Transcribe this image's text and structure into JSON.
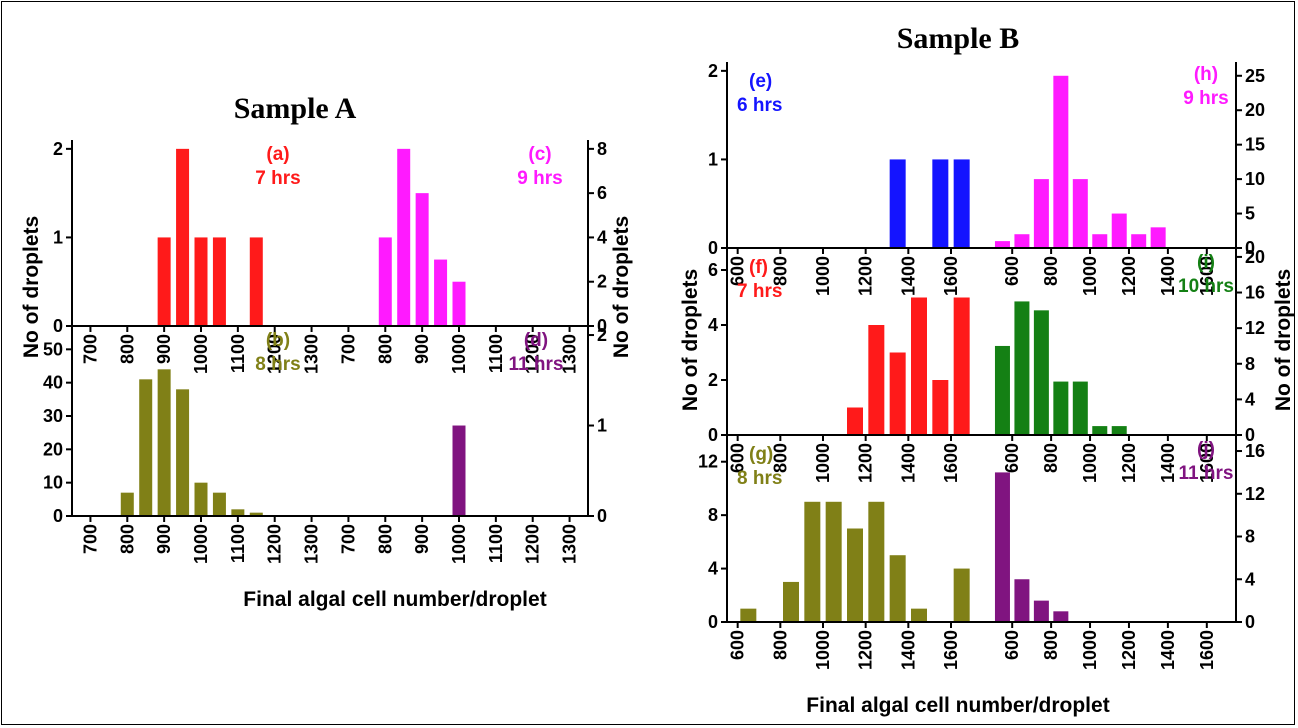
{
  "figure": {
    "sample_a_title": "Sample A",
    "sample_b_title": "Sample B",
    "sample_a_xlabel": "Final algal cell number/droplet",
    "sample_b_xlabel": "Final algal cell number/droplet",
    "ylabel": "No of droplets"
  },
  "chart_data": [
    {
      "id": "a",
      "type": "bar",
      "panel_label": "(a)",
      "time_label": "7 hrs",
      "color": "#ff1a1a",
      "xlim": [
        650,
        1350
      ],
      "ylim": [
        0,
        2.1
      ],
      "xticks": [
        700,
        800,
        900,
        1000,
        1100,
        1200,
        1300
      ],
      "yticks": [
        0,
        1,
        2
      ],
      "x": [
        900,
        950,
        1000,
        1050,
        1150
      ],
      "values": [
        1,
        2,
        1,
        1,
        1
      ]
    },
    {
      "id": "b",
      "type": "bar",
      "panel_label": "(b)",
      "time_label": "8 hrs",
      "color": "#808017",
      "xlim": [
        650,
        1350
      ],
      "ylim": [
        0,
        57
      ],
      "xticks": [
        700,
        800,
        900,
        1000,
        1100,
        1200,
        1300
      ],
      "yticks": [
        0,
        10,
        20,
        30,
        40,
        50
      ],
      "x": [
        800,
        850,
        900,
        950,
        1000,
        1050,
        1100,
        1150
      ],
      "values": [
        7,
        41,
        44,
        38,
        10,
        7,
        2,
        1
      ]
    },
    {
      "id": "c",
      "type": "bar",
      "panel_label": "(c)",
      "time_label": "9 hrs",
      "color": "#ff1aff",
      "xlim": [
        650,
        1350
      ],
      "ylim": [
        0,
        8.4
      ],
      "xticks": [
        700,
        800,
        900,
        1000,
        1100,
        1200,
        1300
      ],
      "yticks": [
        0,
        2,
        4,
        6,
        8
      ],
      "x": [
        800,
        850,
        900,
        950,
        1000
      ],
      "values": [
        4,
        8,
        6,
        3,
        2
      ]
    },
    {
      "id": "d",
      "type": "bar",
      "panel_label": "(d)",
      "time_label": "11 hrs",
      "color": "#801480",
      "xlim": [
        650,
        1350
      ],
      "ylim": [
        0,
        2.1
      ],
      "xticks": [
        700,
        800,
        900,
        1000,
        1100,
        1200,
        1300
      ],
      "yticks": [
        0,
        1,
        2
      ],
      "x": [
        1000
      ],
      "values": [
        1
      ]
    },
    {
      "id": "e",
      "type": "bar",
      "panel_label": "(e)",
      "time_label": "6 hrs",
      "color": "#1414ff",
      "xlim": [
        550,
        1750
      ],
      "ylim": [
        0,
        2.1
      ],
      "xticks": [
        600,
        800,
        1000,
        1200,
        1400,
        1600
      ],
      "yticks": [
        0,
        1,
        2
      ],
      "x": [
        1350,
        1550,
        1650
      ],
      "values": [
        1,
        1,
        1
      ]
    },
    {
      "id": "f",
      "type": "bar",
      "panel_label": "(f)",
      "time_label": "7 hrs",
      "color": "#ff1a1a",
      "xlim": [
        550,
        1750
      ],
      "ylim": [
        0,
        6.8
      ],
      "xticks": [
        600,
        800,
        1000,
        1200,
        1400,
        1600
      ],
      "yticks": [
        0,
        2,
        4,
        6
      ],
      "x": [
        1150,
        1250,
        1350,
        1450,
        1550,
        1650
      ],
      "values": [
        1,
        4,
        3,
        5,
        2,
        5
      ]
    },
    {
      "id": "g",
      "type": "bar",
      "panel_label": "(g)",
      "time_label": "8 hrs",
      "color": "#808017",
      "xlim": [
        550,
        1750
      ],
      "ylim": [
        0,
        14
      ],
      "xticks": [
        600,
        800,
        1000,
        1200,
        1400,
        1600
      ],
      "yticks": [
        0,
        4,
        8,
        12
      ],
      "x": [
        650,
        850,
        950,
        1050,
        1150,
        1250,
        1350,
        1450,
        1650
      ],
      "values": [
        1,
        3,
        9,
        9,
        7,
        9,
        5,
        1,
        4
      ]
    },
    {
      "id": "h",
      "type": "bar",
      "panel_label": "(h)",
      "time_label": "9 hrs",
      "color": "#ff1aff",
      "xlim": [
        450,
        1750
      ],
      "ylim": [
        0,
        27
      ],
      "xticks": [
        600,
        800,
        1000,
        1200,
        1400,
        1600
      ],
      "yticks": [
        0,
        5,
        10,
        15,
        20,
        25
      ],
      "x": [
        550,
        650,
        750,
        850,
        950,
        1050,
        1150,
        1250,
        1350
      ],
      "values": [
        1,
        2,
        10,
        25,
        10,
        2,
        5,
        2,
        3
      ]
    },
    {
      "id": "i",
      "type": "bar",
      "panel_label": "(i)",
      "time_label": "10 hrs",
      "color": "#148014",
      "xlim": [
        450,
        1750
      ],
      "ylim": [
        0,
        21
      ],
      "xticks": [
        600,
        800,
        1000,
        1200,
        1400,
        1600
      ],
      "yticks": [
        0,
        4,
        8,
        12,
        16,
        20
      ],
      "x": [
        550,
        650,
        750,
        850,
        950,
        1050,
        1150
      ],
      "values": [
        10,
        15,
        14,
        6,
        6,
        1,
        1
      ]
    },
    {
      "id": "j",
      "type": "bar",
      "panel_label": "(j)",
      "time_label": "11 hrs",
      "color": "#801480",
      "xlim": [
        450,
        1750
      ],
      "ylim": [
        0,
        17.5
      ],
      "xticks": [
        600,
        800,
        1000,
        1200,
        1400,
        1600
      ],
      "yticks": [
        0,
        4,
        8,
        12,
        16
      ],
      "x": [
        550,
        650,
        750,
        850
      ],
      "values": [
        14,
        4,
        2,
        1
      ]
    }
  ]
}
